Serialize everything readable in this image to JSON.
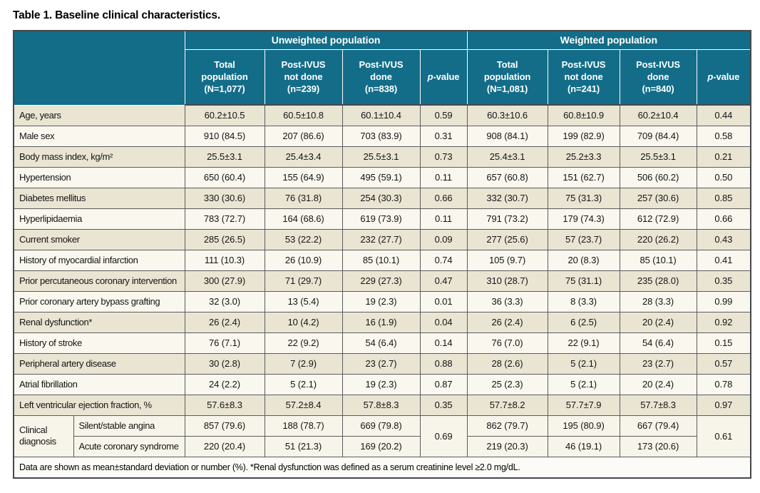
{
  "title": "Table 1. Baseline clinical characteristics.",
  "colors": {
    "header_teal": "#136d88",
    "header_text": "#ffffff",
    "row_beige": "#eae5d3",
    "row_cream": "#f9f7ee",
    "row_diag": "#f7f5ea",
    "foot_bg": "#fcfbf7",
    "border_gray": "#5a5b5d",
    "border_dark": "#46474a",
    "text_dark": "#141414"
  },
  "header": {
    "unweighted": {
      "label": "Unweighted population",
      "columns": [
        "Total\npopulation\n(N=1,077)",
        "Post-IVUS\nnot done\n(n=239)",
        "Post-IVUS\ndone\n(n=838)"
      ]
    },
    "weighted": {
      "label": "Weighted population",
      "columns": [
        "Total\npopulation\n(N=1,081)",
        "Post-IVUS\nnot done\n(n=241)",
        "Post-IVUS\ndone\n(n=840)"
      ]
    },
    "p_value": {
      "italic": "p",
      "rest": "-value"
    }
  },
  "rows": [
    {
      "label": "Age, years",
      "unweighted": [
        "60.2±10.5",
        "60.5±10.8",
        "60.1±10.4",
        "0.59"
      ],
      "weighted": [
        "60.3±10.6",
        "60.8±10.9",
        "60.2±10.4",
        "0.44"
      ]
    },
    {
      "label": "Male sex",
      "unweighted": [
        "910 (84.5)",
        "207 (86.6)",
        "703 (83.9)",
        "0.31"
      ],
      "weighted": [
        "908 (84.1)",
        "199 (82.9)",
        "709 (84.4)",
        "0.58"
      ]
    },
    {
      "label": "Body mass index, kg/m²",
      "unweighted": [
        "25.5±3.1",
        "25.4±3.4",
        "25.5±3.1",
        "0.73"
      ],
      "weighted": [
        "25.4±3.1",
        "25.2±3.3",
        "25.5±3.1",
        "0.21"
      ]
    },
    {
      "label": "Hypertension",
      "unweighted": [
        "650 (60.4)",
        "155 (64.9)",
        "495 (59.1)",
        "0.11"
      ],
      "weighted": [
        "657 (60.8)",
        "151 (62.7)",
        "506 (60.2)",
        "0.50"
      ]
    },
    {
      "label": "Diabetes mellitus",
      "unweighted": [
        "330 (30.6)",
        "76 (31.8)",
        "254 (30.3)",
        "0.66"
      ],
      "weighted": [
        "332 (30.7)",
        "75 (31.3)",
        "257 (30.6)",
        "0.85"
      ]
    },
    {
      "label": "Hyperlipidaemia",
      "unweighted": [
        "783 (72.7)",
        "164 (68.6)",
        "619 (73.9)",
        "0.11"
      ],
      "weighted": [
        "791 (73.2)",
        "179 (74.3)",
        "612 (72.9)",
        "0.66"
      ]
    },
    {
      "label": "Current smoker",
      "unweighted": [
        "285 (26.5)",
        "53 (22.2)",
        "232 (27.7)",
        "0.09"
      ],
      "weighted": [
        "277 (25.6)",
        "57 (23.7)",
        "220 (26.2)",
        "0.43"
      ]
    },
    {
      "label": "History of myocardial infarction",
      "unweighted": [
        "111 (10.3)",
        "26 (10.9)",
        "85 (10.1)",
        "0.74"
      ],
      "weighted": [
        "105 (9.7)",
        "20 (8.3)",
        "85 (10.1)",
        "0.41"
      ]
    },
    {
      "label": "Prior percutaneous coronary intervention",
      "unweighted": [
        "300 (27.9)",
        "71 (29.7)",
        "229 (27.3)",
        "0.47"
      ],
      "weighted": [
        "310 (28.7)",
        "75 (31.1)",
        "235 (28.0)",
        "0.35"
      ]
    },
    {
      "label": "Prior coronary artery bypass grafting",
      "unweighted": [
        "32 (3.0)",
        "13 (5.4)",
        "19 (2.3)",
        "0.01"
      ],
      "weighted": [
        "36 (3.3)",
        "8 (3.3)",
        "28 (3.3)",
        "0.99"
      ]
    },
    {
      "label": "Renal dysfunction*",
      "unweighted": [
        "26 (2.4)",
        "10 (4.2)",
        "16 (1.9)",
        "0.04"
      ],
      "weighted": [
        "26 (2.4)",
        "6 (2.5)",
        "20 (2.4)",
        "0.92"
      ]
    },
    {
      "label": "History of stroke",
      "unweighted": [
        "76 (7.1)",
        "22 (9.2)",
        "54 (6.4)",
        "0.14"
      ],
      "weighted": [
        "76 (7.0)",
        "22 (9.1)",
        "54 (6.4)",
        "0.15"
      ]
    },
    {
      "label": "Peripheral artery disease",
      "unweighted": [
        "30 (2.8)",
        "7 (2.9)",
        "23 (2.7)",
        "0.88"
      ],
      "weighted": [
        "28 (2.6)",
        "5 (2.1)",
        "23 (2.7)",
        "0.57"
      ]
    },
    {
      "label": "Atrial fibrillation",
      "unweighted": [
        "24 (2.2)",
        "5 (2.1)",
        "19 (2.3)",
        "0.87"
      ],
      "weighted": [
        "25 (2.3)",
        "5 (2.1)",
        "20 (2.4)",
        "0.78"
      ]
    },
    {
      "label": "Left ventricular ejection fraction, %",
      "unweighted": [
        "57.6±8.3",
        "57.2±8.4",
        "57.8±8.3",
        "0.35"
      ],
      "weighted": [
        "57.7±8.2",
        "57.7±7.9",
        "57.7±8.3",
        "0.97"
      ]
    }
  ],
  "diagnosis_group": {
    "label": "Clinical diagnosis",
    "p_unweighted": "0.69",
    "p_weighted": "0.61",
    "sub_rows": [
      {
        "label": "Silent/stable angina",
        "unweighted": [
          "857 (79.6)",
          "188 (78.7)",
          "669 (79.8)"
        ],
        "weighted": [
          "862 (79.7)",
          "195 (80.9)",
          "667 (79.4)"
        ]
      },
      {
        "label": "Acute coronary syndrome",
        "unweighted": [
          "220 (20.4)",
          "51 (21.3)",
          "169 (20.2)"
        ],
        "weighted": [
          "219 (20.3)",
          "46 (19.1)",
          "173 (20.6)"
        ]
      }
    ]
  },
  "footnote": "Data are shown as mean±standard deviation or number (%). *Renal dysfunction was defined as a serum creatinine level ≥2.0 mg/dL."
}
